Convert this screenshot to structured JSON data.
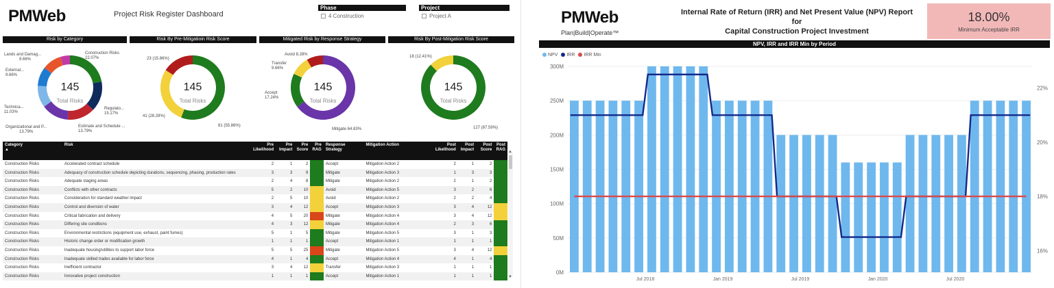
{
  "left": {
    "logo_text": "PMWeb",
    "title": "Project Risk Register Dashboard",
    "phase": {
      "label": "Phase",
      "option": "4 Construction"
    },
    "project": {
      "label": "Project",
      "option": "Project A"
    },
    "charts": [
      {
        "title": "Risk by Category"
      },
      {
        "title": "Risk By Pre-Mitigatioin Risk Score"
      },
      {
        "title": "Mitigated Risk by Response Strategy"
      },
      {
        "title": "Risk By Post-Mitigation Risk Score"
      }
    ],
    "total_value": "145",
    "total_label": "Total Risks",
    "table": {
      "headers": [
        "Category",
        "Risk",
        "Pre Likelihood",
        "Pre Impact",
        "Pre Score",
        "Pre RAG",
        "Response Strategy",
        "Mitigation Action",
        "Post Likelihood",
        "Post Impact",
        "Post Score",
        "Post RAG"
      ],
      "rows": [
        {
          "cat": "Construction Risks",
          "risk": "Accelerated contract schedule",
          "pl": "2",
          "pi": "1",
          "ps": "2",
          "prag": "#1e7b1e",
          "strat": "Accept",
          "act": "Mitigation Action 2",
          "ql": "2",
          "qi": "1",
          "qs": "2",
          "qrag": "#1e7b1e"
        },
        {
          "cat": "Construction Risks",
          "risk": "Adequacy of construction schedule depicting durations, sequencing, phasing, production rates",
          "pl": "3",
          "pi": "3",
          "ps": "9",
          "prag": "#1e7b1e",
          "strat": "Mitigate",
          "act": "Mitigation Action 3",
          "ql": "1",
          "qi": "3",
          "qs": "3",
          "qrag": "#1e7b1e"
        },
        {
          "cat": "Construction Risks",
          "risk": "Adequate staging areas",
          "pl": "2",
          "pi": "4",
          "ps": "8",
          "prag": "#1e7b1e",
          "strat": "Mitigate",
          "act": "Mitigation Action 2",
          "ql": "2",
          "qi": "1",
          "qs": "2",
          "qrag": "#1e7b1e"
        },
        {
          "cat": "Construction Risks",
          "risk": "Conflicts with other contracts",
          "pl": "5",
          "pi": "2",
          "ps": "10",
          "prag": "#f2d13a",
          "strat": "Avoid",
          "act": "Mitigation Action 5",
          "ql": "3",
          "qi": "2",
          "qs": "6",
          "qrag": "#1e7b1e"
        },
        {
          "cat": "Construction Risks",
          "risk": "Consideration for standard weather impact",
          "pl": "2",
          "pi": "5",
          "ps": "10",
          "prag": "#f2d13a",
          "strat": "Avoid",
          "act": "Mitigation Action 2",
          "ql": "2",
          "qi": "2",
          "qs": "4",
          "qrag": "#1e7b1e"
        },
        {
          "cat": "Construction Risks",
          "risk": "Control and diversion of water",
          "pl": "3",
          "pi": "4",
          "ps": "12",
          "prag": "#f2d13a",
          "strat": "Accept",
          "act": "Mitigation Action 3",
          "ql": "3",
          "qi": "4",
          "qs": "12",
          "qrag": "#f2d13a"
        },
        {
          "cat": "Construction Risks",
          "risk": "Critical fabrication and delivery",
          "pl": "4",
          "pi": "5",
          "ps": "20",
          "prag": "#d9461a",
          "strat": "Mitigate",
          "act": "Mitigation Action 4",
          "ql": "3",
          "qi": "4",
          "qs": "12",
          "qrag": "#f2d13a"
        },
        {
          "cat": "Construction Risks",
          "risk": "Differing site conditions",
          "pl": "4",
          "pi": "3",
          "ps": "12",
          "prag": "#f2d13a",
          "strat": "Mitigate",
          "act": "Mitigation Action 4",
          "ql": "2",
          "qi": "3",
          "qs": "6",
          "qrag": "#1e7b1e"
        },
        {
          "cat": "Construction Risks",
          "risk": "Environmental restrictions (equipment use, exhaust, paint fumes)",
          "pl": "5",
          "pi": "1",
          "ps": "5",
          "prag": "#1e7b1e",
          "strat": "Mitigate",
          "act": "Mitigation Action 5",
          "ql": "3",
          "qi": "1",
          "qs": "3",
          "qrag": "#1e7b1e"
        },
        {
          "cat": "Construction Risks",
          "risk": "Historic change order or modification growth",
          "pl": "1",
          "pi": "1",
          "ps": "1",
          "prag": "#1e7b1e",
          "strat": "Accept",
          "act": "Mitigation Action 1",
          "ql": "1",
          "qi": "1",
          "qs": "1",
          "qrag": "#1e7b1e"
        },
        {
          "cat": "Construction Risks",
          "risk": "Inadequate housing/utilities to support labor force",
          "pl": "5",
          "pi": "5",
          "ps": "25",
          "prag": "#d9461a",
          "strat": "Mitigate",
          "act": "Mitigation Action 5",
          "ql": "3",
          "qi": "4",
          "qs": "12",
          "qrag": "#f2d13a"
        },
        {
          "cat": "Construction Risks",
          "risk": "Inadequate skilled trades available for labor force",
          "pl": "4",
          "pi": "1",
          "ps": "4",
          "prag": "#1e7b1e",
          "strat": "Accept",
          "act": "Mitigation Action 4",
          "ql": "4",
          "qi": "1",
          "qs": "4",
          "qrag": "#1e7b1e"
        },
        {
          "cat": "Construction Risks",
          "risk": "Inefficient contractor",
          "pl": "3",
          "pi": "4",
          "ps": "12",
          "prag": "#f2d13a",
          "strat": "Transfer",
          "act": "Mitigation Action 3",
          "ql": "1",
          "qi": "1",
          "qs": "1",
          "qrag": "#1e7b1e"
        },
        {
          "cat": "Construction Risks",
          "risk": "Innovative project construction",
          "pl": "1",
          "pi": "1",
          "ps": "1",
          "prag": "#1e7b1e",
          "strat": "Accept",
          "act": "Mitigation Action 1",
          "ql": "1",
          "qi": "1",
          "qs": "1",
          "qrag": "#1e7b1e"
        }
      ]
    }
  },
  "right": {
    "logo_text": "PMWeb",
    "logo_sub": "Plan|Build|Operate™",
    "title_line1": "Internal Rate of Return (IRR) and Net Present Value (NPV) Report",
    "title_line2": "for",
    "title_line3": "Capital Construction Project Investment",
    "irr_value": "18.00%",
    "irr_label": "Minimum Acceptable IRR",
    "chart_title": "NPV, IRR and IRR Min by Period",
    "legend": [
      {
        "name": "NPV",
        "color": "#6fb8ee"
      },
      {
        "name": "IRR",
        "color": "#13288a"
      },
      {
        "name": "IRR Min",
        "color": "#d94a4a"
      }
    ]
  },
  "chart_data": [
    {
      "type": "pie",
      "title": "Risk by Category",
      "center_value": "145",
      "center_label": "Total Risks",
      "slices": [
        {
          "label": "Construction Risks",
          "pct_text": "22.07%",
          "value": 22.07,
          "color": "#1e7b1e"
        },
        {
          "label": "Regulato...",
          "pct_text": "15.17%",
          "value": 15.17,
          "color": "#0f2a5c"
        },
        {
          "label": "Estimate and Schedule ...",
          "pct_text": "13.79%",
          "value": 13.79,
          "color": "#c0262d"
        },
        {
          "label": "Organizational and P...",
          "pct_text": "13.79%",
          "value": 13.79,
          "color": "#6a35a8"
        },
        {
          "label": "Technica...",
          "pct_text": "11.03%",
          "value": 11.03,
          "color": "#7fb7e8"
        },
        {
          "label": "External...",
          "pct_text": "9.66%",
          "value": 9.66,
          "color": "#1f7bd0"
        },
        {
          "label": "Lands and Damag...",
          "pct_text": "9.66%",
          "value": 9.66,
          "color": "#e8552a"
        },
        {
          "label": "",
          "pct_text": "",
          "value": 4.83,
          "color": "#c23aa6"
        }
      ]
    },
    {
      "type": "pie",
      "title": "Risk By Pre-Mitigatioin Risk Score",
      "center_value": "145",
      "center_label": "Total Risks",
      "slices": [
        {
          "label": "81 (55.86%)",
          "value": 55.86,
          "color": "#1e7b1e"
        },
        {
          "label": "41 (28.28%)",
          "value": 28.28,
          "color": "#f2d13a"
        },
        {
          "label": "23 (15.86%)",
          "value": 15.86,
          "color": "#b01c1c"
        }
      ]
    },
    {
      "type": "pie",
      "title": "Mitigated Risk by Response Strategy",
      "center_value": "145",
      "center_label": "Total Risks",
      "slices": [
        {
          "label": "Mitigate 64.83%",
          "value": 64.83,
          "color": "#6a35a8"
        },
        {
          "label": "Accept 17.24%",
          "value": 17.24,
          "color": "#1e7b1e"
        },
        {
          "label": "Transfer 9.66%",
          "value": 9.66,
          "color": "#f2d13a"
        },
        {
          "label": "Avoid 8.28%",
          "value": 8.28,
          "color": "#b01c1c"
        }
      ]
    },
    {
      "type": "pie",
      "title": "Risk By Post-Mitigation Risk Score",
      "center_value": "145",
      "center_label": "Total Risks",
      "slices": [
        {
          "label": "127 (87.59%)",
          "value": 87.59,
          "color": "#1e7b1e"
        },
        {
          "label": "18 (12.41%)",
          "value": 12.41,
          "color": "#f2d13a"
        }
      ]
    },
    {
      "type": "bar",
      "title": "NPV, IRR and IRR Min by Period",
      "x_ticks": [
        "Jul 2018",
        "Jan 2019",
        "Jul 2019",
        "Jan 2020",
        "Jul 2020"
      ],
      "y_left_ticks": [
        "0M",
        "50M",
        "100M",
        "150M",
        "200M",
        "250M",
        "300M"
      ],
      "y_left_range": [
        0,
        300
      ],
      "y_right_ticks": [
        "16%",
        "18%",
        "20%",
        "22%"
      ],
      "y_right_range": [
        15.2,
        22.8
      ],
      "series": [
        {
          "name": "NPV",
          "type": "bar",
          "values": [
            250,
            250,
            250,
            250,
            250,
            250,
            300,
            300,
            300,
            300,
            300,
            250,
            250,
            250,
            250,
            250,
            200,
            200,
            200,
            200,
            200,
            160,
            160,
            160,
            160,
            160,
            200,
            200,
            200,
            200,
            200,
            250,
            250,
            250,
            250,
            250
          ]
        },
        {
          "name": "IRR",
          "type": "line",
          "values": [
            21,
            21,
            21,
            21,
            21,
            21,
            22.5,
            22.5,
            22.5,
            22.5,
            22.5,
            21,
            21,
            21,
            21,
            21,
            18,
            18,
            18,
            18,
            18,
            16.5,
            16.5,
            16.5,
            16.5,
            16.5,
            18,
            18,
            18,
            18,
            18,
            21,
            21,
            21,
            21,
            21
          ]
        },
        {
          "name": "IRR Min",
          "type": "line",
          "values": [
            18,
            18,
            18,
            18,
            18,
            18,
            18,
            18,
            18,
            18,
            18,
            18,
            18,
            18,
            18,
            18,
            18,
            18,
            18,
            18,
            18,
            18,
            18,
            18,
            18,
            18,
            18,
            18,
            18,
            18,
            18,
            18,
            18,
            18,
            18,
            18
          ]
        }
      ]
    }
  ]
}
